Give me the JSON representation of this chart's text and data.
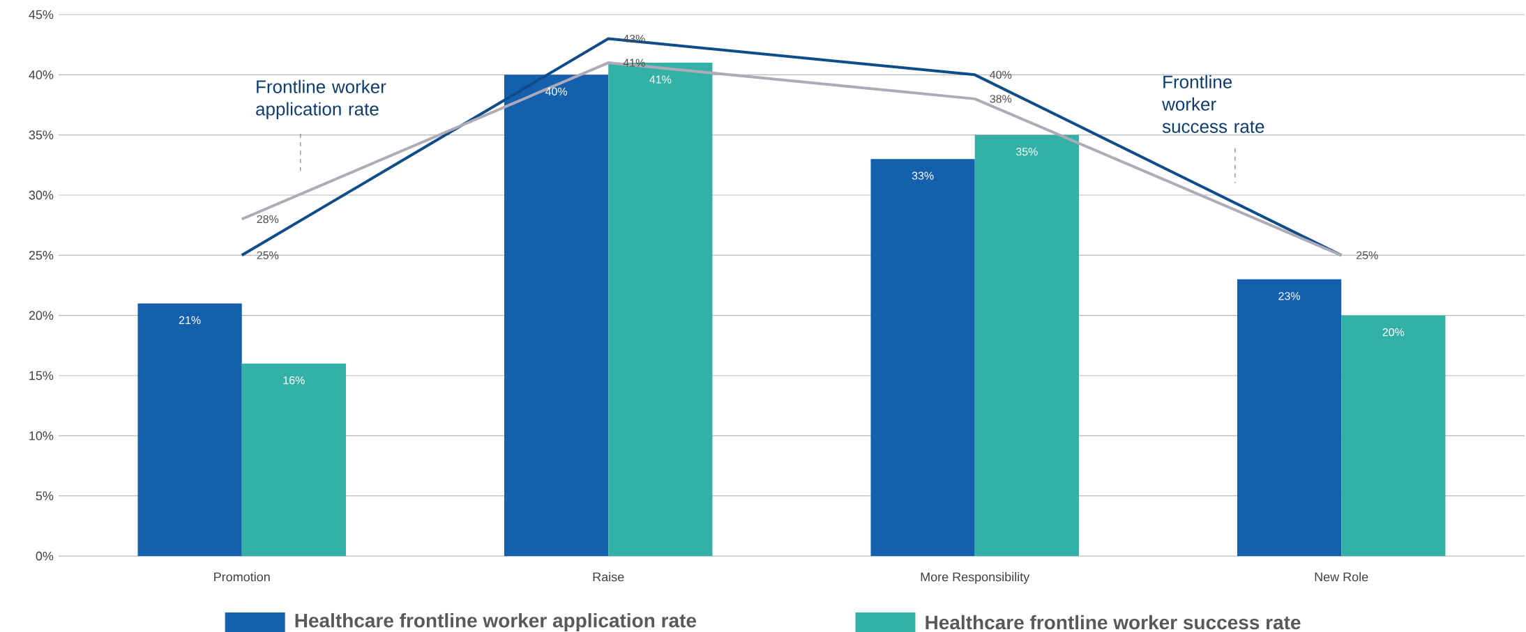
{
  "chart_data": {
    "type": "bar",
    "categories": [
      "Promotion",
      "Raise",
      "More Responsibility",
      "New Role"
    ],
    "series": [
      {
        "name": "Healthcare frontline worker application rate",
        "color": "#1560ad",
        "values": [
          21,
          40,
          33,
          23
        ],
        "value_labels": [
          "21%",
          "40%",
          "33%",
          "23%"
        ]
      },
      {
        "name": "Healthcare frontline worker success rate",
        "color": "#34b1a7",
        "values": [
          16,
          41,
          35,
          20
        ],
        "value_labels": [
          "16%",
          "41%",
          "35%",
          "20%"
        ]
      },
      {
        "type": "line",
        "color": "#0f4c8a",
        "values": [
          25,
          43,
          40,
          25
        ],
        "value_labels": [
          "25%",
          "43%",
          "40%",
          "25%"
        ]
      },
      {
        "type": "line",
        "color": "#aeaab8",
        "values": [
          28,
          41,
          38,
          25
        ],
        "value_labels": [
          "28%",
          "41%",
          "38%",
          null
        ]
      }
    ],
    "ylim": [
      0,
      45
    ],
    "yticks": [
      {
        "value": 0,
        "label": "0%"
      },
      {
        "value": 5,
        "label": "5%"
      },
      {
        "value": 10,
        "label": "10%"
      },
      {
        "value": 15,
        "label": "15%"
      },
      {
        "value": 20,
        "label": "20%"
      },
      {
        "value": 25,
        "label": "25%"
      },
      {
        "value": 30,
        "label": "30%"
      },
      {
        "value": 35,
        "label": "35%"
      },
      {
        "value": 40,
        "label": "40%"
      },
      {
        "value": 45,
        "label": "45%"
      }
    ],
    "grid": "y",
    "legend": "bottom",
    "annotations": [
      "Frontline worker application rate",
      "Frontline worker success rate"
    ]
  }
}
